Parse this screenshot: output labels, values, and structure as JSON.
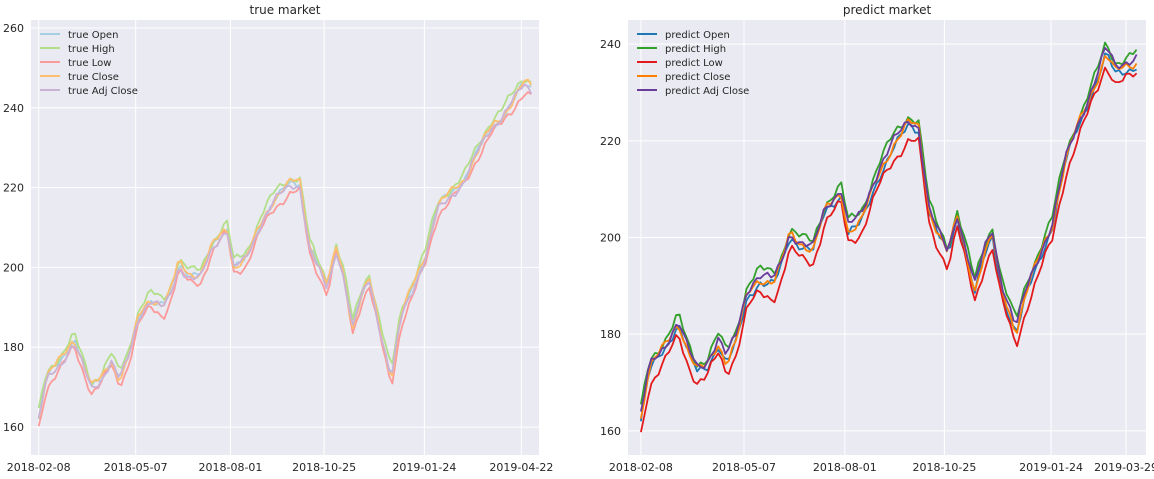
{
  "chart_data": [
    {
      "type": "line",
      "title": "true market",
      "xlabel": "",
      "ylabel": "",
      "x_start": "2018-02-08",
      "x_end": "2019-05-01",
      "xlim": [
        "2018-02-01",
        "2019-05-08"
      ],
      "ylim": [
        153,
        262
      ],
      "xticks": [
        "2018-02-08",
        "2018-05-07",
        "2018-08-01",
        "2018-10-25",
        "2019-01-24",
        "2019-04-22"
      ],
      "yticks": [
        160,
        180,
        200,
        220,
        240,
        260
      ],
      "grid": true,
      "legend_position": "top-left",
      "anchors": [
        [
          "2018-02-08",
          162
        ],
        [
          "2018-02-15",
          172
        ],
        [
          "2018-03-01",
          177
        ],
        [
          "2018-03-12",
          182
        ],
        [
          "2018-03-20",
          176
        ],
        [
          "2018-03-28",
          170
        ],
        [
          "2018-04-05",
          172
        ],
        [
          "2018-04-15",
          177
        ],
        [
          "2018-04-22",
          172
        ],
        [
          "2018-04-30",
          177
        ],
        [
          "2018-05-10",
          188
        ],
        [
          "2018-05-20",
          192
        ],
        [
          "2018-06-01",
          190
        ],
        [
          "2018-06-07",
          193
        ],
        [
          "2018-06-15",
          201
        ],
        [
          "2018-06-25",
          198
        ],
        [
          "2018-07-05",
          198
        ],
        [
          "2018-07-15",
          205
        ],
        [
          "2018-07-25",
          209
        ],
        [
          "2018-07-30",
          210
        ],
        [
          "2018-08-03",
          200
        ],
        [
          "2018-08-15",
          202
        ],
        [
          "2018-08-30",
          212
        ],
        [
          "2018-09-10",
          217
        ],
        [
          "2018-09-25",
          221
        ],
        [
          "2018-10-03",
          221
        ],
        [
          "2018-10-12",
          205
        ],
        [
          "2018-10-20",
          200
        ],
        [
          "2018-10-28",
          195
        ],
        [
          "2018-11-05",
          205
        ],
        [
          "2018-11-12",
          198
        ],
        [
          "2018-11-20",
          185
        ],
        [
          "2018-11-28",
          193
        ],
        [
          "2018-12-05",
          197
        ],
        [
          "2018-12-12",
          188
        ],
        [
          "2018-12-25",
          172
        ],
        [
          "2019-01-03",
          188
        ],
        [
          "2019-01-15",
          196
        ],
        [
          "2019-01-25",
          203
        ],
        [
          "2019-02-05",
          215
        ],
        [
          "2019-02-15",
          218
        ],
        [
          "2019-03-01",
          222
        ],
        [
          "2019-03-15",
          230
        ],
        [
          "2019-03-25",
          235
        ],
        [
          "2019-04-05",
          238
        ],
        [
          "2019-04-15",
          242
        ],
        [
          "2019-04-24",
          246
        ],
        [
          "2019-05-01",
          245
        ]
      ],
      "series": [
        {
          "name": "true Open",
          "color": "#a6cee3",
          "offset": 0
        },
        {
          "name": "true High",
          "color": "#b2df8a",
          "offset": 1.5
        },
        {
          "name": "true Low",
          "color": "#fb9a99",
          "offset": -1.8
        },
        {
          "name": "true Close",
          "color": "#fdbf6f",
          "offset": 0.2
        },
        {
          "name": "true Adj Close",
          "color": "#cab2d6",
          "offset": -0.4
        }
      ]
    },
    {
      "type": "line",
      "title": "predict market",
      "xlabel": "",
      "ylabel": "",
      "x_start": "2018-02-08",
      "x_end": "2019-04-08",
      "xlim": [
        "2018-01-28",
        "2019-04-15"
      ],
      "ylim": [
        155,
        245
      ],
      "xticks": [
        "2018-02-08",
        "2018-05-07",
        "2018-08-01",
        "2018-10-25",
        "2019-01-24",
        "2019-03-29"
      ],
      "yticks": [
        160,
        180,
        200,
        220,
        240
      ],
      "grid": true,
      "legend_position": "top-left",
      "anchors": [
        [
          "2018-02-08",
          162
        ],
        [
          "2018-02-15",
          172
        ],
        [
          "2018-03-01",
          177
        ],
        [
          "2018-03-12",
          182
        ],
        [
          "2018-03-20",
          176
        ],
        [
          "2018-03-28",
          172
        ],
        [
          "2018-04-05",
          173
        ],
        [
          "2018-04-15",
          178
        ],
        [
          "2018-04-22",
          174
        ],
        [
          "2018-04-30",
          178
        ],
        [
          "2018-05-10",
          188
        ],
        [
          "2018-05-20",
          191
        ],
        [
          "2018-06-01",
          190
        ],
        [
          "2018-06-07",
          193
        ],
        [
          "2018-06-15",
          200
        ],
        [
          "2018-06-25",
          198
        ],
        [
          "2018-07-05",
          197
        ],
        [
          "2018-07-15",
          205
        ],
        [
          "2018-07-25",
          208
        ],
        [
          "2018-07-30",
          209
        ],
        [
          "2018-08-03",
          201
        ],
        [
          "2018-08-15",
          203
        ],
        [
          "2018-08-30",
          213
        ],
        [
          "2018-09-10",
          218
        ],
        [
          "2018-09-25",
          223
        ],
        [
          "2018-10-03",
          222
        ],
        [
          "2018-10-12",
          205
        ],
        [
          "2018-10-20",
          200
        ],
        [
          "2018-10-28",
          196
        ],
        [
          "2018-11-05",
          204
        ],
        [
          "2018-11-12",
          197
        ],
        [
          "2018-11-20",
          189
        ],
        [
          "2018-11-28",
          196
        ],
        [
          "2018-12-05",
          200
        ],
        [
          "2018-12-12",
          190
        ],
        [
          "2018-12-25",
          180
        ],
        [
          "2019-01-03",
          188
        ],
        [
          "2019-01-15",
          196
        ],
        [
          "2019-01-25",
          202
        ],
        [
          "2019-02-05",
          215
        ],
        [
          "2019-02-15",
          222
        ],
        [
          "2019-02-25",
          228
        ],
        [
          "2019-03-05",
          233
        ],
        [
          "2019-03-12",
          238
        ],
        [
          "2019-03-20",
          234
        ],
        [
          "2019-03-29",
          235
        ],
        [
          "2019-04-08",
          236
        ]
      ],
      "series": [
        {
          "name": "predict Open",
          "color": "#1f78b4",
          "offset": 0
        },
        {
          "name": "predict High",
          "color": "#33a02c",
          "offset": 2.2
        },
        {
          "name": "predict Low",
          "color": "#e31a1c",
          "offset": -2.3
        },
        {
          "name": "predict Close",
          "color": "#ff7f00",
          "offset": 0.5
        },
        {
          "name": "predict Adj Close",
          "color": "#6a3d9a",
          "offset": 1.2
        }
      ]
    }
  ]
}
